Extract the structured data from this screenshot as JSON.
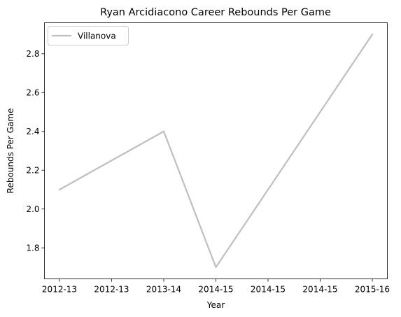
{
  "chart_data": {
    "type": "line",
    "title": "Ryan Arcidiacono Career Rebounds Per Game",
    "xlabel": "Year",
    "ylabel": "Rebounds Per Game",
    "x_tick_labels": [
      "2012-13",
      "2012-13",
      "2013-14",
      "2014-15",
      "2014-15",
      "2014-15",
      "2015-16"
    ],
    "y_ticks": [
      1.8,
      2.0,
      2.2,
      2.4,
      2.6,
      2.8
    ],
    "y_tick_labels": [
      "1.8",
      "2.0",
      "2.2",
      "2.4",
      "2.6",
      "2.8"
    ],
    "ylim": [
      1.64,
      2.96
    ],
    "grid": false,
    "legend_position": "upper-left",
    "series": [
      {
        "name": "Villanova",
        "color": "#bfbfbf",
        "x": [
          "2012-13",
          "2013-14",
          "2014-15",
          "2015-16"
        ],
        "values": [
          2.1,
          2.4,
          1.7,
          2.9
        ]
      }
    ]
  }
}
